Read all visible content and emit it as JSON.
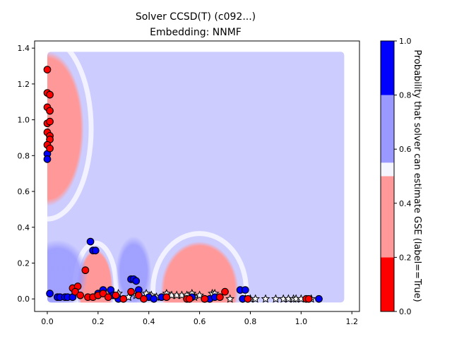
{
  "chart_data": {
    "type": "scatter",
    "title": "Solver CCSD(T) (c092...)",
    "subtitle": "Embedding: NNMF",
    "xlim": [
      -0.05,
      1.23
    ],
    "ylim": [
      -0.07,
      1.44
    ],
    "x_ticks": [
      "0.0",
      "0.2",
      "0.4",
      "0.6",
      "0.8",
      "1.0",
      "1.2"
    ],
    "x_tick_values": [
      0.0,
      0.2,
      0.4,
      0.6,
      0.8,
      1.0,
      1.2
    ],
    "y_ticks": [
      "0.0",
      "0.2",
      "0.4",
      "0.6",
      "0.8",
      "1.0",
      "1.2",
      "1.4"
    ],
    "y_tick_values": [
      0.0,
      0.2,
      0.4,
      0.6,
      0.8,
      1.0,
      1.2,
      1.4
    ],
    "grid": false,
    "background_field": {
      "x_range": [
        0.0,
        1.17
      ],
      "y_range": [
        -0.02,
        1.38
      ],
      "default_probability": 0.65,
      "regions": [
        {
          "kind": "red",
          "cx": 0.0,
          "cy": 0.95,
          "rx": 0.16,
          "ry": 0.48,
          "p": 0.35
        },
        {
          "kind": "red",
          "cx": 0.19,
          "cy": 0.06,
          "rx": 0.075,
          "ry": 0.24,
          "p": 0.35
        },
        {
          "kind": "red",
          "cx": 0.6,
          "cy": 0.05,
          "rx": 0.17,
          "ry": 0.3,
          "p": 0.35
        },
        {
          "kind": "blue",
          "cx": 0.04,
          "cy": 0.13,
          "rx": 0.12,
          "ry": 0.2,
          "p": 0.75
        },
        {
          "kind": "blue",
          "cx": 0.34,
          "cy": 0.15,
          "rx": 0.07,
          "ry": 0.2,
          "p": 0.75
        }
      ]
    },
    "colorbar": {
      "label": "Probability that solver can estimate GSE (label==True)",
      "ticks": [
        "0.0",
        "0.2",
        "0.4",
        "0.6",
        "0.8",
        "1.0"
      ],
      "tick_values": [
        0.0,
        0.2,
        0.4,
        0.6,
        0.8,
        1.0
      ],
      "bands": [
        {
          "from": 0.0,
          "to": 0.2,
          "color": "#ff0000"
        },
        {
          "from": 0.2,
          "to": 0.5,
          "color": "#ff9999"
        },
        {
          "from": 0.5,
          "to": 0.55,
          "color": "#f5f5ff"
        },
        {
          "from": 0.55,
          "to": 0.8,
          "color": "#9999ff"
        },
        {
          "from": 0.8,
          "to": 1.0,
          "color": "#0000ff"
        }
      ]
    },
    "colors": {
      "field_red": "#ff9999",
      "field_blue": "#ccccff",
      "field_blue_strong": "#9999ff",
      "marker_red": "#ff0000",
      "marker_blue": "#0000ff",
      "marker_edge": "#000000",
      "star_fill": "#ffffff"
    },
    "series": [
      {
        "marker": "circle",
        "color": "red",
        "points": [
          [
            0.0,
            1.28
          ],
          [
            0.0,
            1.15
          ],
          [
            0.01,
            1.14
          ],
          [
            0.0,
            1.07
          ],
          [
            0.01,
            1.05
          ],
          [
            0.0,
            0.98
          ],
          [
            0.01,
            0.99
          ],
          [
            0.0,
            0.93
          ],
          [
            0.01,
            0.91
          ],
          [
            0.01,
            0.89
          ],
          [
            0.0,
            0.86
          ],
          [
            0.01,
            0.84
          ],
          [
            0.1,
            0.06
          ],
          [
            0.12,
            0.07
          ],
          [
            0.11,
            0.04
          ],
          [
            0.13,
            0.02
          ],
          [
            0.15,
            0.16
          ],
          [
            0.16,
            0.01
          ],
          [
            0.18,
            0.01
          ],
          [
            0.2,
            0.02
          ],
          [
            0.22,
            0.03
          ],
          [
            0.24,
            0.01
          ],
          [
            0.27,
            0.02
          ],
          [
            0.3,
            0.0
          ],
          [
            0.33,
            0.04
          ],
          [
            0.36,
            0.02
          ],
          [
            0.38,
            0.0
          ],
          [
            0.47,
            0.01
          ],
          [
            0.55,
            0.0
          ],
          [
            0.56,
            0.0
          ],
          [
            0.62,
            0.0
          ],
          [
            0.68,
            0.01
          ],
          [
            0.7,
            0.04
          ],
          [
            0.79,
            0.0
          ],
          [
            1.02,
            0.0
          ],
          [
            1.03,
            0.0
          ]
        ]
      },
      {
        "marker": "circle",
        "color": "blue",
        "points": [
          [
            0.0,
            0.81
          ],
          [
            0.0,
            0.78
          ],
          [
            0.01,
            0.03
          ],
          [
            0.04,
            0.01
          ],
          [
            0.05,
            0.01
          ],
          [
            0.07,
            0.01
          ],
          [
            0.08,
            0.01
          ],
          [
            0.1,
            0.01
          ],
          [
            0.17,
            0.32
          ],
          [
            0.18,
            0.27
          ],
          [
            0.19,
            0.27
          ],
          [
            0.2,
            0.03
          ],
          [
            0.22,
            0.05
          ],
          [
            0.25,
            0.05
          ],
          [
            0.26,
            0.02
          ],
          [
            0.28,
            0.0
          ],
          [
            0.33,
            0.11
          ],
          [
            0.34,
            0.11
          ],
          [
            0.35,
            0.1
          ],
          [
            0.36,
            0.05
          ],
          [
            0.4,
            0.01
          ],
          [
            0.42,
            0.0
          ],
          [
            0.45,
            0.01
          ],
          [
            0.57,
            0.01
          ],
          [
            0.62,
            0.0
          ],
          [
            0.64,
            0.0
          ],
          [
            0.66,
            0.01
          ],
          [
            0.76,
            0.05
          ],
          [
            0.78,
            0.05
          ],
          [
            0.77,
            0.0
          ],
          [
            1.07,
            0.0
          ]
        ]
      },
      {
        "marker": "star",
        "color": "white",
        "points": [
          [
            0.26,
            0.02
          ],
          [
            0.28,
            0.03
          ],
          [
            0.32,
            0.01
          ],
          [
            0.35,
            0.02
          ],
          [
            0.39,
            0.03
          ],
          [
            0.41,
            0.02
          ],
          [
            0.43,
            0.01
          ],
          [
            0.47,
            0.03
          ],
          [
            0.49,
            0.02
          ],
          [
            0.51,
            0.02
          ],
          [
            0.53,
            0.02
          ],
          [
            0.55,
            0.02
          ],
          [
            0.57,
            0.03
          ],
          [
            0.58,
            0.01
          ],
          [
            0.6,
            0.02
          ],
          [
            0.65,
            0.03
          ],
          [
            0.66,
            0.03
          ],
          [
            0.72,
            0.0
          ],
          [
            0.78,
            0.0
          ],
          [
            0.8,
            0.0
          ],
          [
            0.82,
            0.0
          ],
          [
            0.86,
            0.0
          ],
          [
            0.9,
            0.0
          ],
          [
            0.93,
            0.0
          ],
          [
            0.95,
            0.0
          ],
          [
            0.97,
            0.0
          ],
          [
            0.98,
            0.0
          ],
          [
            1.0,
            0.0
          ],
          [
            1.04,
            0.0
          ]
        ]
      }
    ]
  }
}
